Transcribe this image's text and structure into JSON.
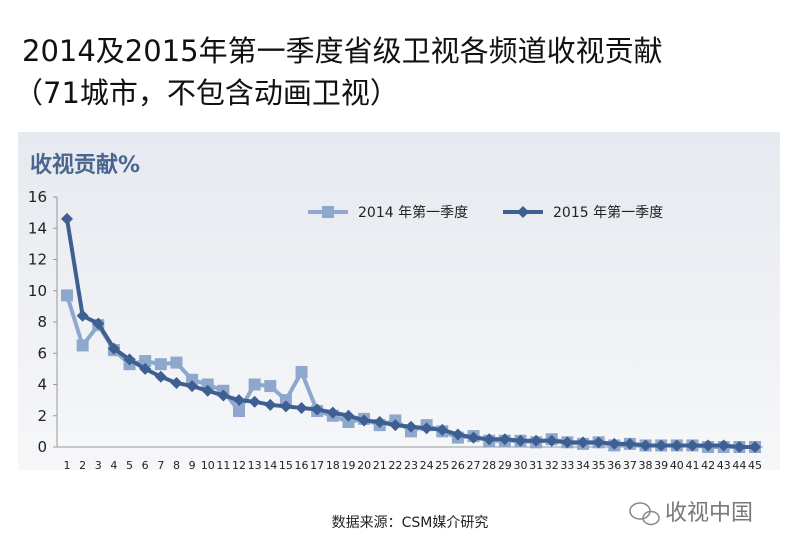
{
  "chart_data": {
    "type": "line",
    "title": "2014及2015年第一季度省级卫视各频道收视贡献",
    "subtitle": "（71城市，不包含动画卫视）",
    "y_label": "收视贡献%",
    "source": "数据来源：CSM媒介研究",
    "watermark": "收视中国",
    "categories": [
      "1",
      "2",
      "3",
      "4",
      "5",
      "6",
      "7",
      "8",
      "9",
      "10",
      "11",
      "12",
      "13",
      "14",
      "15",
      "16",
      "17",
      "18",
      "19",
      "20",
      "21",
      "22",
      "23",
      "24",
      "25",
      "26",
      "27",
      "28",
      "29",
      "30",
      "31",
      "32",
      "33",
      "34",
      "35",
      "36",
      "37",
      "38",
      "39",
      "40",
      "41",
      "42",
      "43",
      "44",
      "45"
    ],
    "series": [
      {
        "name": "2014 年第一季度",
        "color": "#8ea8cd",
        "marker": "square",
        "values": [
          9.7,
          6.5,
          7.8,
          6.2,
          5.3,
          5.5,
          5.3,
          5.4,
          4.3,
          4.0,
          3.6,
          2.3,
          4.0,
          3.9,
          3.0,
          4.8,
          2.3,
          2.0,
          1.6,
          1.8,
          1.4,
          1.7,
          1.0,
          1.4,
          1.0,
          0.6,
          0.7,
          0.4,
          0.4,
          0.4,
          0.3,
          0.5,
          0.3,
          0.2,
          0.3,
          0.1,
          0.2,
          0.1,
          0.1,
          0.1,
          0.1,
          0.0,
          0.0,
          0.0,
          0.0
        ]
      },
      {
        "name": "2015 年第一季度",
        "color": "#3d5f91",
        "marker": "diamond",
        "values": [
          14.6,
          8.4,
          7.9,
          6.3,
          5.6,
          5.0,
          4.5,
          4.1,
          3.9,
          3.6,
          3.3,
          3.0,
          2.9,
          2.7,
          2.6,
          2.5,
          2.4,
          2.2,
          2.0,
          1.7,
          1.6,
          1.4,
          1.3,
          1.2,
          1.1,
          0.8,
          0.6,
          0.5,
          0.5,
          0.4,
          0.4,
          0.4,
          0.3,
          0.3,
          0.3,
          0.2,
          0.2,
          0.1,
          0.1,
          0.1,
          0.1,
          0.1,
          0.1,
          0.0,
          0.0
        ]
      }
    ],
    "ylim": [
      0,
      16
    ],
    "yticks": [
      0,
      2,
      4,
      6,
      8,
      10,
      12,
      14,
      16
    ],
    "grid": false,
    "legend": "top"
  }
}
